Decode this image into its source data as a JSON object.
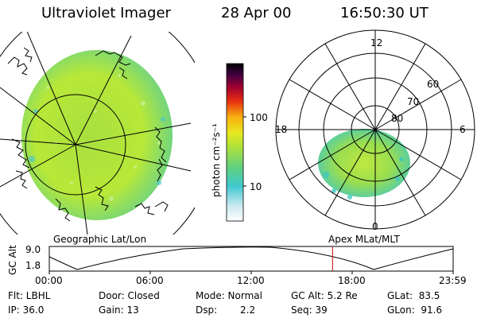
{
  "header": {
    "instrument": "Ultraviolet Imager",
    "date": "28 Apr 00",
    "time": "16:50:30 UT"
  },
  "colorbar": {
    "unit_label": "photon cm⁻²s⁻¹",
    "ticks": [
      "100",
      "10"
    ]
  },
  "left_panel": {
    "caption": "Geographic Lat/Lon"
  },
  "right_panel": {
    "caption": "Apex MLat/MLT",
    "mlt_labels": {
      "top": "12",
      "left": "18",
      "right": "6",
      "bottom": "0"
    },
    "lat_labels": [
      "60",
      "70",
      "80"
    ]
  },
  "altitude_plot": {
    "ylabel": "GC Alt",
    "y_ticks": [
      "9.0",
      "1.8"
    ],
    "x_ticks": [
      "00:00",
      "06:00",
      "12:00",
      "18:00",
      "23:59"
    ],
    "marker_time": "16:50",
    "marker_color": "#c00000"
  },
  "footer": {
    "filter": "Flt: LBHL",
    "ip": "IP: 36.0",
    "door": "Door: Closed",
    "gain": "Gain: 13",
    "mode": "Mode: Normal",
    "dsp_label": "Dsp:",
    "dsp_value": "2.2",
    "gc_alt": "GC Alt: 5.2 Re",
    "seq": "Seq: 39",
    "glat": "GLat:  83.5",
    "glon": "GLon:  91.6"
  }
}
